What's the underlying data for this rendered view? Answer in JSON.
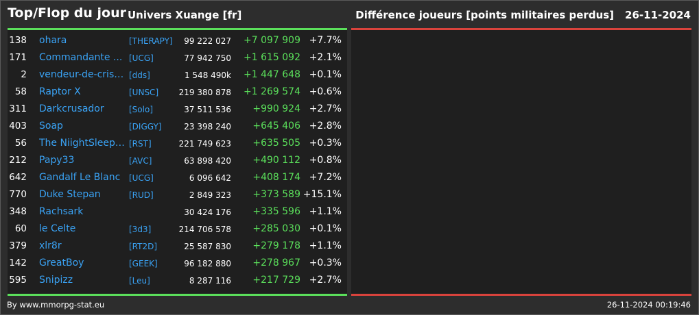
{
  "header": {
    "title": "Top/Flop du jour",
    "universe": "Univers Xuange [fr]",
    "subtitle": "Différence joueurs [points militaires perdus]",
    "date": "26-11-2024"
  },
  "colors": {
    "positive": "#5be05b",
    "negative": "#d9433c",
    "link": "#3aa3f5",
    "background": "#2d2d2d",
    "panel": "#1f1f1f"
  },
  "top_rows": [
    {
      "rank": "138",
      "name": "ohara",
      "ally": "[THERAPY]",
      "points": "99 222 027",
      "diff": "+7 097 909",
      "pct": "+7.7%"
    },
    {
      "rank": "171",
      "name": "Commandante ...",
      "ally": "[UCG]",
      "points": "77 942 750",
      "diff": "+1 615 092",
      "pct": "+2.1%"
    },
    {
      "rank": "2",
      "name": "vendeur-de-crista...",
      "ally": "[dds]",
      "points": "1 548 490k",
      "diff": "+1 447 648",
      "pct": "+0.1%"
    },
    {
      "rank": "58",
      "name": "Raptor X",
      "ally": "[UNSC]",
      "points": "219 380 878",
      "diff": "+1 269 574",
      "pct": "+0.6%"
    },
    {
      "rank": "311",
      "name": "Darkcrusador",
      "ally": "[Solo]",
      "points": "37 511 536",
      "diff": "+990 924",
      "pct": "+2.7%"
    },
    {
      "rank": "403",
      "name": "Soap",
      "ally": "[DIGGY]",
      "points": "23 398 240",
      "diff": "+645 406",
      "pct": "+2.8%"
    },
    {
      "rank": "56",
      "name": "The NiightSleepe...",
      "ally": "[RST]",
      "points": "221 749 623",
      "diff": "+635 505",
      "pct": "+0.3%"
    },
    {
      "rank": "212",
      "name": "Papy33",
      "ally": "[AVC]",
      "points": "63 898 420",
      "diff": "+490 112",
      "pct": "+0.8%"
    },
    {
      "rank": "642",
      "name": "Gandalf Le Blanc",
      "ally": "[UCG]",
      "points": "6 096 642",
      "diff": "+408 174",
      "pct": "+7.2%"
    },
    {
      "rank": "770",
      "name": "Duke Stepan",
      "ally": "[RUD]",
      "points": "2 849 323",
      "diff": "+373 589",
      "pct": "+15.1%"
    },
    {
      "rank": "348",
      "name": "Rachsark",
      "ally": "",
      "points": "30 424 176",
      "diff": "+335 596",
      "pct": "+1.1%"
    },
    {
      "rank": "60",
      "name": "le Celte",
      "ally": "[3d3]",
      "points": "214 706 578",
      "diff": "+285 030",
      "pct": "+0.1%"
    },
    {
      "rank": "379",
      "name": "xlr8r",
      "ally": "[RT2D]",
      "points": "25 587 830",
      "diff": "+279 178",
      "pct": "+1.1%"
    },
    {
      "rank": "142",
      "name": "GreatBoy",
      "ally": "[GEEK]",
      "points": "96 182 880",
      "diff": "+278 967",
      "pct": "+0.3%"
    },
    {
      "rank": "595",
      "name": "Snipizz",
      "ally": "[Leu]",
      "points": "8 287 116",
      "diff": "+217 729",
      "pct": "+2.7%"
    }
  ],
  "flop_rows": [],
  "footer": {
    "credit": "By www.mmorpg-stat.eu",
    "timestamp": "26-11-2024 00:19:46"
  }
}
